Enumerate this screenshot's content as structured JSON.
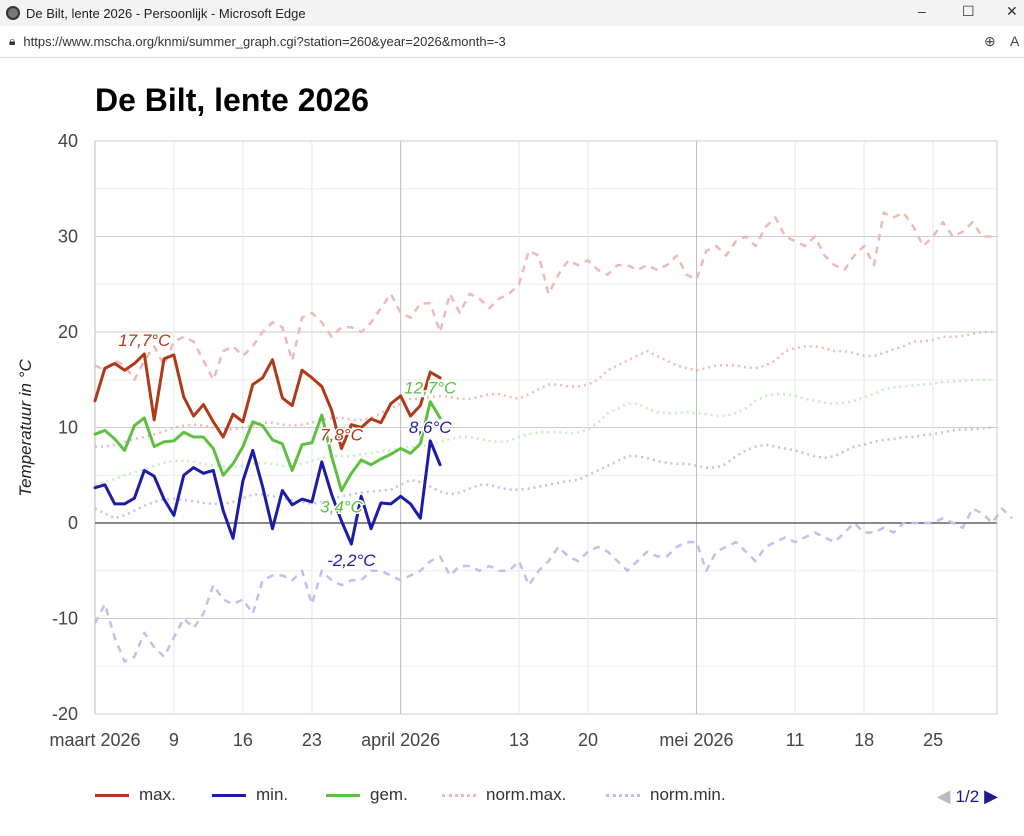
{
  "window": {
    "title": "De Bilt, lente 2026 - Persoonlijk - Microsoft Edge",
    "url": "https://www.mscha.org/knmi/summer_graph.cgi?station=260&year=2026&month=-3"
  },
  "page": {
    "title": "De Bilt, lente 2026"
  },
  "pager": {
    "label": "1/2"
  },
  "chart_data": {
    "type": "line",
    "title": "De Bilt, lente 2026",
    "ylabel": "Temperatuur in °C",
    "ylim": [
      -20,
      40
    ],
    "yticks": [
      "40",
      "30",
      "20",
      "10",
      "0",
      "-10",
      "-20"
    ],
    "x_start": "2026-03-01",
    "x_end": "2026-05-31",
    "xticks": [
      {
        "day": 1,
        "label": "maart 2026"
      },
      {
        "day": 9,
        "label": "9"
      },
      {
        "day": 16,
        "label": "16"
      },
      {
        "day": 23,
        "label": "23"
      },
      {
        "day": 32,
        "label": "april 2026"
      },
      {
        "day": 44,
        "label": "13"
      },
      {
        "day": 51,
        "label": "20"
      },
      {
        "day": 62,
        "label": "mei 2026"
      },
      {
        "day": 72,
        "label": "11"
      },
      {
        "day": 79,
        "label": "18"
      },
      {
        "day": 86,
        "label": "25"
      }
    ],
    "grid": true,
    "legend_placement": "bottom",
    "series": [
      {
        "key": "recmax",
        "color": "#f0b8b8",
        "style": "dashed",
        "values": [
          16.5,
          16,
          17,
          16.5,
          15,
          17,
          18.5,
          16.5,
          19,
          19.5,
          19,
          17,
          15,
          18,
          18.5,
          17.5,
          18.5,
          20,
          21,
          20.5,
          17,
          21.5,
          22,
          21,
          19.5,
          20.5,
          20.5,
          20,
          21,
          22.5,
          24,
          22,
          21.5,
          23,
          23,
          20,
          24,
          22,
          24,
          23.5,
          22.5,
          23.5,
          24,
          25,
          28.5,
          28,
          24,
          26,
          27.5,
          27,
          27.5,
          26.5,
          26,
          27,
          27,
          26.5,
          27,
          26.5,
          27,
          28,
          26,
          25.5,
          28.5,
          29,
          28,
          29.5,
          30,
          29,
          31,
          32,
          30,
          29.5,
          29,
          30,
          28,
          27,
          26.5,
          28,
          29,
          27,
          32.5,
          32,
          32.5,
          31,
          29,
          30,
          31.5,
          30,
          30.5,
          31.5,
          30,
          30
        ]
      },
      {
        "key": "recmin",
        "color": "#c0c0f0",
        "style": "dashed",
        "values": [
          -10.5,
          -8.5,
          -12,
          -14.5,
          -14,
          -11.5,
          -13,
          -14,
          -12,
          -10,
          -11,
          -9.5,
          -6.5,
          -8,
          -8.5,
          -8,
          -9.5,
          -6,
          -5.5,
          -5.5,
          -6,
          -5,
          -8.5,
          -5,
          -6,
          -6.5,
          -6,
          -6,
          -5,
          -5,
          -5.5,
          -6,
          -5.5,
          -5,
          -4,
          -3.5,
          -5.5,
          -4.5,
          -4.5,
          -5,
          -4.5,
          -5,
          -5,
          -4,
          -6.5,
          -5,
          -4,
          -2.5,
          -3.5,
          -4,
          -3,
          -2.5,
          -3,
          -4,
          -5,
          -4,
          -3,
          -3.5,
          -3.5,
          -2.5,
          -2,
          -2,
          -5,
          -3,
          -2.5,
          -2,
          -3,
          -4,
          -2.5,
          -2,
          -1.5,
          -2,
          -1.5,
          -1,
          -1.5,
          -2,
          -1,
          0,
          -1,
          -1,
          -0.5,
          -1,
          0,
          0,
          0,
          0,
          0.5,
          0,
          -0.5,
          1.5,
          1,
          0,
          1.5,
          0.5
        ]
      },
      {
        "key": "normmax",
        "name": "norm.max.",
        "color": "#f0b8b8",
        "style": "dotted",
        "values": [
          8,
          8,
          8.2,
          8.5,
          8.8,
          9,
          9.3,
          9.6,
          10,
          10.2,
          10.3,
          10.2,
          10,
          9.8,
          9.8,
          10,
          10.2,
          10.5,
          10.5,
          10.3,
          10.2,
          10.3,
          10.5,
          10.8,
          11,
          11,
          10.8,
          10.8,
          11,
          11.5,
          12,
          12.5,
          13,
          13,
          13.2,
          13.3,
          13.2,
          13,
          13,
          13.2,
          13.5,
          13.5,
          13.2,
          13,
          13.5,
          14,
          14.5,
          14.5,
          14.3,
          14.3,
          14.5,
          15,
          16,
          16.5,
          17,
          17.5,
          18,
          17.5,
          17,
          16.5,
          16.2,
          16,
          16.2,
          16.5,
          16.5,
          16.5,
          16.3,
          16.2,
          16.5,
          17,
          18,
          18.3,
          18.5,
          18.5,
          18.3,
          18,
          18,
          17.8,
          17.5,
          17.5,
          17.8,
          18.2,
          18.5,
          19,
          19,
          19.2,
          19.5,
          19.5,
          19.6,
          19.8,
          20,
          20
        ]
      },
      {
        "key": "normavg",
        "color": "#c8ecc0",
        "style": "dotted",
        "values": [
          4,
          4.3,
          4.6,
          5,
          5.3,
          5.6,
          6,
          6.3,
          6.5,
          6.5,
          6.4,
          6.2,
          6,
          5.9,
          5.8,
          6,
          6.2,
          6.3,
          6.2,
          6,
          6,
          6.2,
          6.5,
          6.8,
          7,
          7,
          7,
          7.2,
          7.3,
          7.5,
          7.6,
          7.8,
          8,
          8,
          8.2,
          8.5,
          8.8,
          9,
          9,
          8.8,
          8.6,
          8.5,
          8.6,
          9,
          9.3,
          9.5,
          9.5,
          9.5,
          9.4,
          9.5,
          9.8,
          10.5,
          11.5,
          12,
          12.5,
          12.5,
          12,
          11.6,
          11.5,
          11.5,
          11.6,
          11.5,
          11.4,
          11.2,
          11.2,
          11.5,
          12,
          12.8,
          13.3,
          13.5,
          13.5,
          13.3,
          13,
          12.8,
          12.6,
          12.5,
          12.6,
          12.8,
          13.2,
          13.5,
          14,
          14.2,
          14.3,
          14.4,
          14.5,
          14.6,
          14.8,
          14.8,
          14.9,
          15,
          15,
          15
        ]
      },
      {
        "key": "normmin",
        "name": "norm.min.",
        "color": "#c0c0f0",
        "style": "dotted",
        "values": [
          1.5,
          1,
          0.5,
          0.8,
          1.3,
          1.8,
          2.2,
          2.5,
          2.5,
          2.4,
          2.3,
          2.1,
          2,
          2,
          2.2,
          2.6,
          3,
          3,
          2.8,
          2.6,
          2.4,
          2.2,
          2,
          2.2,
          2.5,
          2.8,
          3,
          3.2,
          3.3,
          3.4,
          3.5,
          4,
          4.5,
          4.3,
          3.8,
          3.3,
          3,
          3.2,
          3.6,
          4,
          4,
          3.7,
          3.5,
          3.5,
          3.6,
          3.8,
          4,
          4.2,
          4.4,
          4.5,
          5,
          5.5,
          6,
          6.5,
          7,
          7,
          6.8,
          6.5,
          6.3,
          6.2,
          6.2,
          6,
          5.8,
          5.8,
          6.2,
          7,
          7.6,
          8,
          8.2,
          8,
          7.8,
          7.6,
          7.3,
          7,
          6.8,
          7,
          7.5,
          8,
          8.2,
          8.5,
          8.7,
          8.8,
          9,
          9,
          9.2,
          9.3,
          9.5,
          9.7,
          9.8,
          9.8,
          9.9,
          10
        ]
      },
      {
        "key": "max",
        "name": "max.",
        "color": "#b03a18",
        "style": "solid",
        "values": [
          12.8,
          16.2,
          16.7,
          16.0,
          16.7,
          17.7,
          10.8,
          17.2,
          17.6,
          13.2,
          11.2,
          12.4,
          10.6,
          9.0,
          11.4,
          10.6,
          14.5,
          15.2,
          17.1,
          13.1,
          12.3,
          16.0,
          15.2,
          14.3,
          11.8,
          7.8,
          10.3,
          10.0,
          10.9,
          10.5,
          12.5,
          13.3,
          11.2,
          12.3,
          15.8,
          15.2
        ]
      },
      {
        "key": "min",
        "name": "min.",
        "color": "#1c1ca8",
        "style": "solid",
        "values": [
          3.7,
          4.0,
          2.0,
          2.0,
          2.6,
          5.5,
          4.9,
          2.5,
          0.8,
          5.0,
          5.8,
          5.2,
          5.5,
          1.3,
          -1.6,
          4.4,
          7.6,
          3.8,
          -0.6,
          3.4,
          1.9,
          2.5,
          2.2,
          6.4,
          3.0,
          0.2,
          -2.2,
          2.8,
          -0.6,
          2.1,
          2.0,
          2.8,
          2.0,
          0.5,
          8.6,
          6.1
        ]
      },
      {
        "key": "avg",
        "name": "gem.",
        "color": "#5ec040",
        "style": "solid",
        "values": [
          9.3,
          9.7,
          8.8,
          7.6,
          10.2,
          11.0,
          8.0,
          8.5,
          8.6,
          9.5,
          9.0,
          9.0,
          7.8,
          5.0,
          6.2,
          8.0,
          10.6,
          10.2,
          8.7,
          8.3,
          5.5,
          8.2,
          8.4,
          11.3,
          7.0,
          3.4,
          5.2,
          6.6,
          6.1,
          6.7,
          7.2,
          7.8,
          7.3,
          8.3,
          12.7,
          11.0
        ]
      }
    ],
    "annotations": [
      {
        "text": "17,7°C",
        "series": "max",
        "day": 6,
        "color": "#b03a18"
      },
      {
        "text": "7,8°C",
        "series": "max",
        "day": 26,
        "color": "#b03a18"
      },
      {
        "text": "12,7°C",
        "series": "avg",
        "day": 35,
        "color": "#5ec040"
      },
      {
        "text": "3,4°C",
        "series": "avg",
        "day": 26,
        "color": "#5ec040"
      },
      {
        "text": "8,6°C",
        "series": "min",
        "day": 35,
        "color": "#1c1ca8"
      },
      {
        "text": "-2,2°C",
        "series": "min",
        "day": 27,
        "color": "#1c1ca8"
      }
    ]
  }
}
